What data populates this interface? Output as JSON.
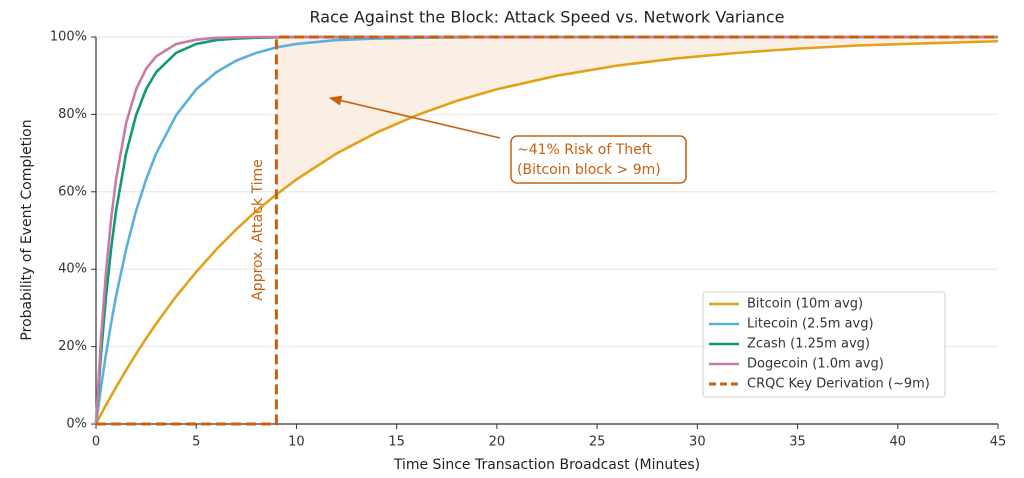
{
  "chart_data": {
    "type": "line",
    "title": "Race Against the Block: Attack Speed vs. Network Variance",
    "x_label": "Time Since Transaction Broadcast (Minutes)",
    "y_label": "Probability of Event Completion",
    "x": [
      0,
      0.25,
      0.5,
      0.75,
      1,
      1.5,
      2,
      2.5,
      3,
      4,
      5,
      6,
      7,
      8,
      9,
      10,
      12,
      14,
      16,
      18,
      20,
      23,
      26,
      29,
      32,
      35,
      38,
      41,
      45
    ],
    "series": [
      {
        "name": "Bitcoin (10m avg)",
        "color": "#e1a21a",
        "values": [
          0,
          2.5,
          4.9,
          7.2,
          9.5,
          13.9,
          18.1,
          22.1,
          25.9,
          33.0,
          39.3,
          45.1,
          50.3,
          55.1,
          59.3,
          63.2,
          69.9,
          75.3,
          79.8,
          83.5,
          86.5,
          90.0,
          92.6,
          94.5,
          95.9,
          97.0,
          97.8,
          98.3,
          98.9
        ]
      },
      {
        "name": "Litecoin (2.5m avg)",
        "color": "#5ab1de",
        "values": [
          0,
          9.5,
          18.1,
          25.9,
          33.0,
          45.1,
          55.1,
          63.2,
          69.9,
          79.8,
          86.5,
          90.9,
          93.9,
          95.9,
          97.3,
          98.2,
          99.2,
          99.6,
          99.8,
          99.9,
          100,
          100,
          100,
          100,
          100,
          100,
          100,
          100,
          100
        ]
      },
      {
        "name": "Zcash (1.25m avg)",
        "color": "#109a74",
        "values": [
          0,
          18.1,
          33.0,
          45.1,
          55.1,
          69.9,
          79.8,
          86.5,
          90.9,
          95.9,
          98.2,
          99.2,
          99.6,
          99.8,
          99.9,
          100,
          100,
          100,
          100,
          100,
          100,
          100,
          100,
          100,
          100,
          100,
          100,
          100,
          100
        ]
      },
      {
        "name": "Dogecoin (1.0m avg)",
        "color": "#c97ba8",
        "values": [
          0,
          22.1,
          39.3,
          52.8,
          63.2,
          77.7,
          86.5,
          91.8,
          95.0,
          98.2,
          99.3,
          99.8,
          99.9,
          100,
          100,
          100,
          100,
          100,
          100,
          100,
          100,
          100,
          100,
          100,
          100,
          100,
          100,
          100,
          100
        ]
      },
      {
        "name": "CRQC Key Derivation (~9m)",
        "color": "#c8600f",
        "dashed": true,
        "x": [
          0,
          9,
          9,
          45
        ],
        "values": [
          0,
          0,
          100,
          100
        ]
      }
    ],
    "annotations": [
      {
        "text": [
          "~41% Risk of Theft",
          "(Bitcoin block > 9m)"
        ],
        "color": "#c8600f"
      },
      {
        "text": "Approx. Attack Time",
        "color": "#c8600f"
      }
    ],
    "shade_color": "#fbeee3",
    "xlim": [
      0,
      45
    ],
    "xticks": [
      0,
      5,
      10,
      15,
      20,
      25,
      30,
      35,
      40,
      45
    ],
    "ylim": [
      0,
      100
    ],
    "yticks": [
      {
        "value": 0,
        "label": "0%"
      },
      {
        "value": 20,
        "label": "20%"
      },
      {
        "value": 40,
        "label": "40%"
      },
      {
        "value": 60,
        "label": "60%"
      },
      {
        "value": 80,
        "label": "80%"
      },
      {
        "value": 100,
        "label": "100%"
      }
    ],
    "grid": true,
    "legend": "lower right"
  }
}
